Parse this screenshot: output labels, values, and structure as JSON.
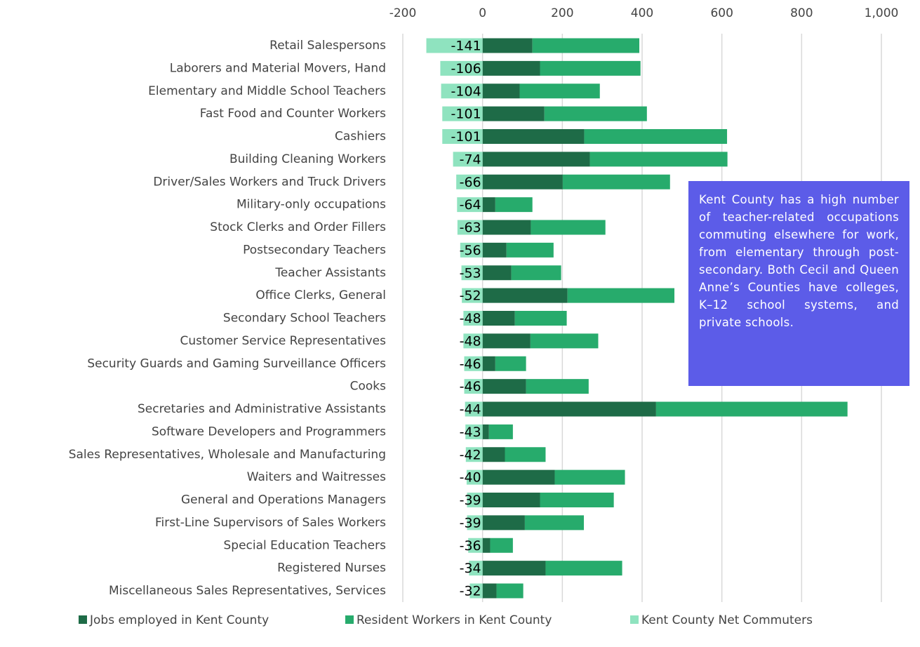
{
  "chart_data": {
    "type": "stacked_barh",
    "categories": [
      "Retail Salespersons",
      "Laborers and Material Movers, Hand",
      "Elementary and Middle School Teachers",
      "Fast Food and Counter Workers",
      "Cashiers",
      "Building Cleaning Workers",
      "Driver/Sales Workers and Truck Drivers",
      "Military-only occupations",
      "Stock Clerks and Order Fillers",
      "Postsecondary Teachers",
      "Teacher Assistants",
      "Office Clerks, General",
      "Secondary School Teachers",
      "Customer Service Representatives",
      "Security Guards and Gaming Surveillance Officers",
      "Cooks",
      "Secretaries and Administrative Assistants",
      "Software Developers and Programmers",
      "Sales Representatives, Wholesale and Manufacturing",
      "Waiters and Waitresses",
      "General and Operations Managers",
      "First-Line Supervisors of Sales Workers",
      "Special Education Teachers",
      "Registered Nurses",
      "Miscellaneous Sales Representatives, Services"
    ],
    "series": [
      {
        "name": "Jobs employed in Kent County",
        "color": "#1e6b47",
        "values": [
          125,
          144,
          93,
          155,
          255,
          269,
          201,
          32,
          121,
          60,
          72,
          213,
          81,
          120,
          32,
          109,
          435,
          16,
          56,
          181,
          144,
          106,
          19,
          158,
          35
        ]
      },
      {
        "name": "Resident Workers in Kent County",
        "color": "#27ab6c",
        "values": [
          268,
          252,
          201,
          257,
          358,
          345,
          269,
          93,
          187,
          118,
          125,
          268,
          130,
          170,
          77,
          157,
          480,
          60,
          102,
          176,
          185,
          148,
          57,
          192,
          67
        ]
      },
      {
        "name": "Kent County Net Commuters",
        "color": "#8fe3bf",
        "values": [
          -141,
          -106,
          -104,
          -101,
          -101,
          -74,
          -66,
          -64,
          -63,
          -56,
          -53,
          -52,
          -48,
          -48,
          -46,
          -46,
          -44,
          -43,
          -42,
          -40,
          -39,
          -39,
          -36,
          -34,
          -32
        ]
      }
    ],
    "xlim": [
      -200,
      1000
    ],
    "xticks": [
      -200,
      0,
      200,
      400,
      600,
      800,
      {
        "value": 1000,
        "label": "1,000"
      }
    ],
    "grid": true,
    "legend": "bottom",
    "annotation": "Kent County has a high number of teacher-related occupations commuting elsewhere for work, from elementary through post-secondary. Both Cecil and Queen Anne’s Counties have colleges, K–12 school systems, and private schools."
  }
}
